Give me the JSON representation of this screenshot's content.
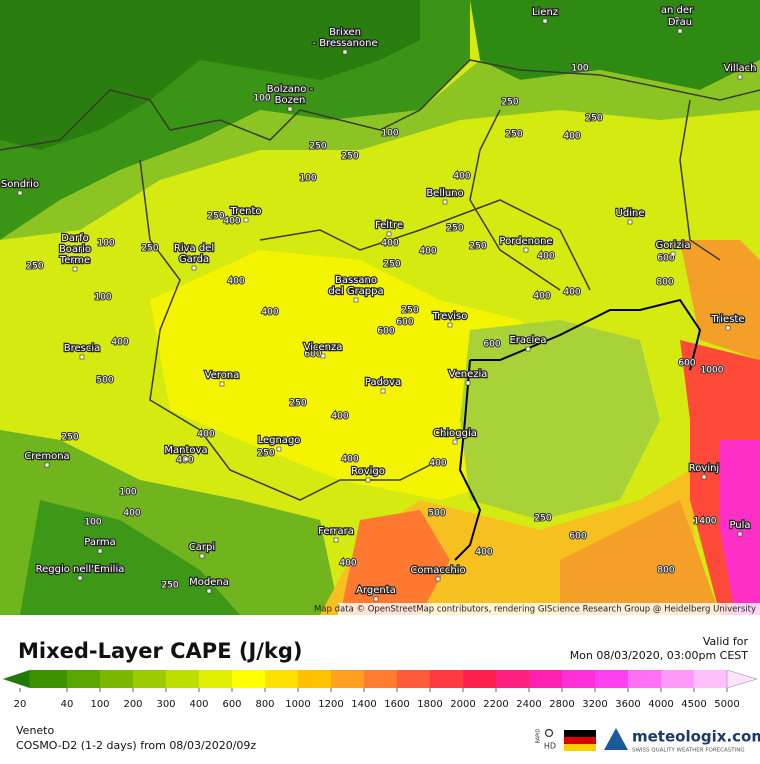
{
  "map": {
    "credits": "Map data © OpenStreetMap contributors, rendering GIScience Research Group @ Heidelberg University",
    "cities": [
      [
        "Lienz"
      ],
      [
        "an der"
      ],
      [
        "Drau"
      ],
      [
        "Villach"
      ],
      [
        "Brixen",
        "- Bressanone"
      ],
      [
        "Bolzano -",
        "Bozen"
      ],
      [
        "Sondrio"
      ],
      [
        "Darfo",
        "Boario",
        "Terme"
      ],
      [
        "Trento"
      ],
      [
        "Riva del",
        "Garda"
      ],
      [
        "Belluno"
      ],
      [
        "Feltre"
      ],
      [
        "Udine"
      ],
      [
        "Pordenone"
      ],
      [
        "Gorizia"
      ],
      [
        "Bassano",
        "del Grappa"
      ],
      [
        "Treviso"
      ],
      [
        "Trieste"
      ],
      [
        "Eraclea"
      ],
      [
        "Brescia"
      ],
      [
        "Vicenza"
      ],
      [
        "Venezia"
      ],
      [
        "Verona"
      ],
      [
        "Padova"
      ],
      [
        "Legnago"
      ],
      [
        "Chioggia"
      ],
      [
        "Mantova"
      ],
      [
        "Cremona"
      ],
      [
        "Rovigo"
      ],
      [
        "Rovinj"
      ],
      [
        "Ferrara"
      ],
      [
        "Parma"
      ],
      [
        "Carpi"
      ],
      [
        "Reggio nell'Emilia"
      ],
      [
        "Modena"
      ],
      [
        "Comacchio"
      ],
      [
        "Argenta"
      ],
      [
        "Pula"
      ]
    ],
    "contour_labels": [
      100,
      100,
      250,
      100,
      250,
      250,
      100,
      250,
      250,
      400,
      250,
      400,
      250,
      250,
      400,
      400,
      250,
      100,
      250,
      400,
      400,
      400,
      400,
      400,
      600,
      600,
      600,
      400,
      600,
      250,
      400,
      500,
      400,
      400,
      250,
      400,
      400,
      250,
      250,
      400,
      400,
      400,
      500,
      600,
      250,
      600,
      800,
      600,
      800,
      1000,
      1400,
      100,
      250,
      400,
      250,
      100,
      100
    ]
  },
  "legend": {
    "title": "Mixed-Layer CAPE (J/kg)",
    "ticks": [
      20,
      40,
      100,
      200,
      300,
      400,
      600,
      800,
      1000,
      1200,
      1400,
      1600,
      1800,
      2000,
      2200,
      2400,
      2800,
      3200,
      3600,
      4000,
      4500,
      5000
    ],
    "colors": [
      "#1f7a00",
      "#3c9200",
      "#5aa600",
      "#7ab800",
      "#9ccb00",
      "#bede00",
      "#e0ef00",
      "#ffff00",
      "#ffe000",
      "#ffc000",
      "#ffa020",
      "#ff7c30",
      "#ff5a3a",
      "#ff3a40",
      "#ff2050",
      "#ff2080",
      "#ff20b0",
      "#ff30d8",
      "#ff40f0",
      "#ff70f5",
      "#ff9af8",
      "#ffc0fb",
      "#ffe0fd"
    ]
  },
  "footer": {
    "valid_label": "Valid for",
    "valid_time": "Mon 08/03/2020, 03:00pm CEST",
    "region": "Veneto",
    "model": "COSMO-D2 (1-2 days) from 08/03/2020/09z",
    "rapid": "RAPID",
    "hd": "HD",
    "brand": "meteologix.com",
    "tagline": "SWISS QUALITY WEATHER FORECASTING"
  }
}
